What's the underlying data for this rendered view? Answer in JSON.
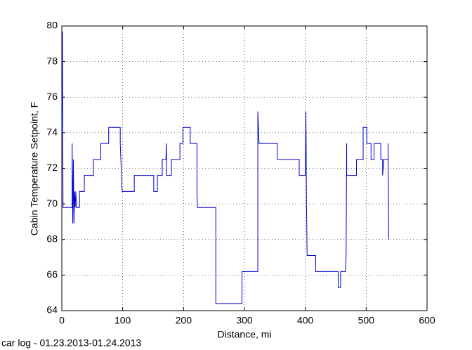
{
  "chart_data": {
    "type": "line",
    "x_label": "Distance, mi",
    "y_label": "Cabin Temperature Setpoint, F",
    "annotation": "car log - 01.23.2013-01.24.2013",
    "color": "#0000cc",
    "grid": true,
    "xlim": [
      0,
      600
    ],
    "xticks": [
      0,
      100,
      200,
      300,
      400,
      500,
      600
    ],
    "ylim": [
      64,
      80
    ],
    "yticks": [
      64,
      66,
      68,
      70,
      72,
      74,
      76,
      78,
      80
    ],
    "x": [
      0,
      1,
      2,
      17,
      17,
      18,
      19,
      20,
      21,
      22,
      23,
      24,
      29,
      29,
      37,
      37,
      52,
      52,
      64,
      64,
      77,
      77,
      96,
      96,
      98,
      99,
      119,
      119,
      151,
      151,
      157,
      157,
      165,
      165,
      171,
      172,
      172,
      180,
      180,
      194,
      194,
      199,
      199,
      211,
      211,
      222,
      222,
      223,
      253,
      253,
      296,
      296,
      322,
      322,
      324,
      354,
      354,
      390,
      390,
      400,
      401,
      402,
      403,
      417,
      417,
      454,
      454,
      458,
      458,
      466,
      467,
      468,
      468,
      484,
      484,
      495,
      495,
      501,
      501,
      508,
      508,
      513,
      513,
      524,
      524,
      527,
      527,
      529,
      536,
      536,
      537
    ],
    "values": [
      74,
      79.7,
      69.8,
      69.8,
      73.4,
      68.9,
      72.5,
      68.9,
      70.7,
      69.8,
      70.7,
      69.8,
      69.8,
      70.7,
      70.7,
      71.6,
      71.6,
      72.5,
      72.5,
      73.4,
      73.4,
      74.3,
      74.3,
      73.4,
      71.6,
      70.7,
      70.7,
      71.6,
      71.6,
      70.7,
      70.7,
      71.6,
      71.6,
      72.5,
      72.5,
      73.4,
      71.6,
      71.6,
      72.5,
      72.5,
      73.4,
      73.4,
      74.3,
      74.3,
      73.4,
      73.4,
      70.7,
      69.8,
      69.8,
      64.4,
      64.4,
      66.2,
      66.2,
      75.2,
      73.4,
      73.4,
      72.5,
      72.5,
      71.6,
      71.6,
      75.2,
      69.8,
      67.1,
      67.1,
      66.2,
      66.2,
      65.3,
      65.3,
      66.2,
      66.2,
      67.1,
      73.4,
      71.6,
      71.6,
      72.5,
      72.5,
      74.3,
      74.3,
      73.4,
      73.4,
      72.5,
      72.5,
      73.4,
      73.4,
      72.5,
      72.5,
      71.6,
      72.5,
      72.5,
      73.4,
      68
    ]
  }
}
